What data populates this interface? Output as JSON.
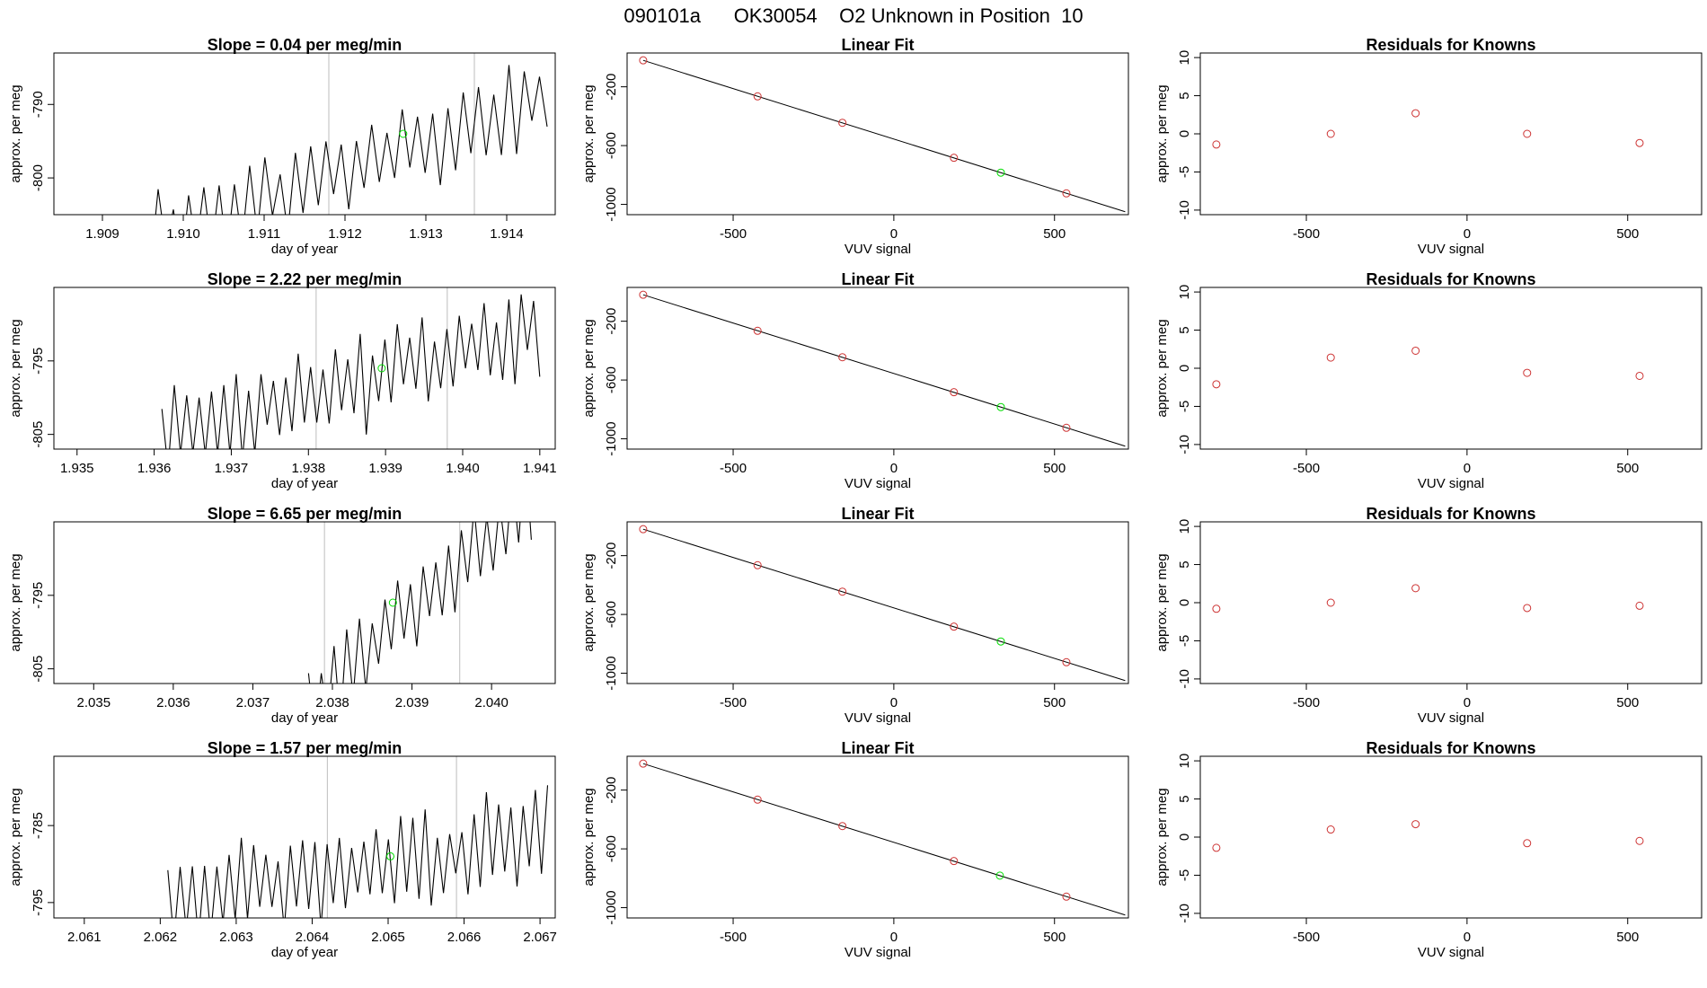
{
  "page_title": "090101a      OK30054    O2 Unknown in Position  10",
  "colors": {
    "axis": "#000000",
    "trace": "#000000",
    "known_marker": "#cd3333",
    "unknown_marker": "#00dd00",
    "vertical_marker": "#bebebe"
  },
  "chart_data": [
    {
      "row": 1,
      "kind": "timeseries",
      "type": "line",
      "title": "Slope =  0.04  per meg/min",
      "xlabel": "day of year",
      "ylabel": "approx. per meg",
      "xlim": [
        1.9084,
        1.9146
      ],
      "ylim": [
        -805,
        -783
      ],
      "xticks": [
        1.909,
        1.91,
        1.911,
        1.912,
        1.913,
        1.914
      ],
      "xtick_labels": [
        "1.909",
        "1.910",
        "1.911",
        "1.912",
        "1.913",
        "1.914"
      ],
      "yticks": [
        -800,
        -790
      ],
      "ytick_labels": [
        "-800",
        "-790"
      ],
      "vlines": [
        1.9118,
        1.9136
      ],
      "unknown_point": [
        1.91272,
        -794
      ],
      "trace": {
        "start": 1.9095,
        "end": 1.9145,
        "base_start": -808,
        "base_end": -789,
        "amplitude": 4.5,
        "period": 0.00019,
        "seed": 11
      }
    },
    {
      "row": 1,
      "kind": "fit",
      "type": "scatter",
      "title": "Linear Fit",
      "xlabel": "VUV signal",
      "ylabel": "approx. per meg",
      "xlim": [
        -830,
        730
      ],
      "ylim": [
        -1070,
        30
      ],
      "xticks": [
        -500,
        0,
        500
      ],
      "xtick_labels": [
        "-500",
        "0",
        "500"
      ],
      "yticks": [
        -1000,
        -600,
        -200
      ],
      "ytick_labels": [
        "-1000",
        "-600",
        "-200"
      ],
      "line": {
        "x0": -780,
        "y0": -20,
        "x1": 720,
        "y1": -1050
      },
      "knowns": [
        {
          "x": -780,
          "y": -20
        },
        {
          "x": -424,
          "y": -265
        },
        {
          "x": -160,
          "y": -445
        },
        {
          "x": 187,
          "y": -683
        },
        {
          "x": 537,
          "y": -925
        }
      ],
      "unknown": {
        "x": 333,
        "y": -784
      }
    },
    {
      "row": 1,
      "kind": "residuals",
      "type": "scatter",
      "title": "Residuals for Knowns",
      "xlabel": "VUV signal",
      "ylabel": "approx. per meg",
      "xlim": [
        -830,
        730
      ],
      "ylim": [
        -10.6,
        10.6
      ],
      "xticks": [
        -500,
        0,
        500
      ],
      "xtick_labels": [
        "-500",
        "0",
        "500"
      ],
      "yticks": [
        -10,
        -5,
        0,
        5,
        10
      ],
      "ytick_labels": [
        "-10",
        "-5",
        "0",
        "5",
        "10"
      ],
      "points": [
        {
          "x": -780,
          "y": -1.4
        },
        {
          "x": -424,
          "y": 0.0
        },
        {
          "x": -160,
          "y": 2.7
        },
        {
          "x": 187,
          "y": 0.0
        },
        {
          "x": 537,
          "y": -1.2
        }
      ]
    },
    {
      "row": 2,
      "kind": "timeseries",
      "type": "line",
      "title": "Slope =  2.22  per meg/min",
      "xlabel": "day of year",
      "ylabel": "approx. per meg",
      "xlim": [
        1.9347,
        1.9412
      ],
      "ylim": [
        -807,
        -785
      ],
      "xticks": [
        1.935,
        1.936,
        1.937,
        1.938,
        1.939,
        1.94,
        1.941
      ],
      "xtick_labels": [
        "1.935",
        "1.936",
        "1.937",
        "1.938",
        "1.939",
        "1.940",
        "1.941"
      ],
      "yticks": [
        -805,
        -795
      ],
      "ytick_labels": [
        "-805",
        "-795"
      ],
      "vlines": [
        1.9381,
        1.9398
      ],
      "unknown_point": [
        1.93895,
        -796
      ],
      "trace": {
        "start": 1.9361,
        "end": 1.941,
        "base_start": -805,
        "base_end": -791,
        "amplitude": 5.0,
        "period": 0.00016,
        "seed": 23
      }
    },
    {
      "row": 2,
      "kind": "fit",
      "type": "scatter",
      "title": "Linear Fit",
      "xlabel": "VUV signal",
      "ylabel": "approx. per meg",
      "xlim": [
        -830,
        730
      ],
      "ylim": [
        -1070,
        30
      ],
      "xticks": [
        -500,
        0,
        500
      ],
      "xtick_labels": [
        "-500",
        "0",
        "500"
      ],
      "yticks": [
        -1000,
        -600,
        -200
      ],
      "ytick_labels": [
        "-1000",
        "-600",
        "-200"
      ],
      "line": {
        "x0": -780,
        "y0": -20,
        "x1": 720,
        "y1": -1050
      },
      "knowns": [
        {
          "x": -780,
          "y": -20
        },
        {
          "x": -424,
          "y": -265
        },
        {
          "x": -160,
          "y": -445
        },
        {
          "x": 187,
          "y": -683
        },
        {
          "x": 537,
          "y": -925
        }
      ],
      "unknown": {
        "x": 333,
        "y": -784
      }
    },
    {
      "row": 2,
      "kind": "residuals",
      "type": "scatter",
      "title": "Residuals for Knowns",
      "xlabel": "VUV signal",
      "ylabel": "approx. per meg",
      "xlim": [
        -830,
        730
      ],
      "ylim": [
        -10.6,
        10.6
      ],
      "xticks": [
        -500,
        0,
        500
      ],
      "xtick_labels": [
        "-500",
        "0",
        "500"
      ],
      "yticks": [
        -10,
        -5,
        0,
        5,
        10
      ],
      "ytick_labels": [
        "-10",
        "-5",
        "0",
        "5",
        "10"
      ],
      "points": [
        {
          "x": -780,
          "y": -2.1
        },
        {
          "x": -424,
          "y": 1.4
        },
        {
          "x": -160,
          "y": 2.3
        },
        {
          "x": 187,
          "y": -0.6
        },
        {
          "x": 537,
          "y": -1.0
        }
      ]
    },
    {
      "row": 3,
      "kind": "timeseries",
      "type": "line",
      "title": "Slope =  6.65  per meg/min",
      "xlabel": "day of year",
      "ylabel": "approx. per meg",
      "xlim": [
        2.0345,
        2.0408
      ],
      "ylim": [
        -807,
        -785
      ],
      "xticks": [
        2.035,
        2.036,
        2.037,
        2.038,
        2.039,
        2.04
      ],
      "xtick_labels": [
        "2.035",
        "2.036",
        "2.037",
        "2.038",
        "2.039",
        "2.040"
      ],
      "yticks": [
        -805,
        -795
      ],
      "ytick_labels": [
        "-805",
        "-795"
      ],
      "vlines": [
        2.0379,
        2.0396
      ],
      "unknown_point": [
        2.03876,
        -796
      ],
      "trace": {
        "start": 2.0377,
        "end": 2.0405,
        "base_start": -810,
        "base_end": -782,
        "amplitude": 5.5,
        "period": 0.00016,
        "seed": 37
      }
    },
    {
      "row": 3,
      "kind": "fit",
      "type": "scatter",
      "title": "Linear Fit",
      "xlabel": "VUV signal",
      "ylabel": "approx. per meg",
      "xlim": [
        -830,
        730
      ],
      "ylim": [
        -1070,
        30
      ],
      "xticks": [
        -500,
        0,
        500
      ],
      "xtick_labels": [
        "-500",
        "0",
        "500"
      ],
      "yticks": [
        -1000,
        -600,
        -200
      ],
      "ytick_labels": [
        "-1000",
        "-600",
        "-200"
      ],
      "line": {
        "x0": -780,
        "y0": -20,
        "x1": 720,
        "y1": -1050
      },
      "knowns": [
        {
          "x": -780,
          "y": -20
        },
        {
          "x": -424,
          "y": -265
        },
        {
          "x": -160,
          "y": -445
        },
        {
          "x": 187,
          "y": -683
        },
        {
          "x": 537,
          "y": -925
        }
      ],
      "unknown": {
        "x": 333,
        "y": -784
      }
    },
    {
      "row": 3,
      "kind": "residuals",
      "type": "scatter",
      "title": "Residuals for Knowns",
      "xlabel": "VUV signal",
      "ylabel": "approx. per meg",
      "xlim": [
        -830,
        730
      ],
      "ylim": [
        -10.6,
        10.6
      ],
      "xticks": [
        -500,
        0,
        500
      ],
      "xtick_labels": [
        "-500",
        "0",
        "500"
      ],
      "yticks": [
        -10,
        -5,
        0,
        5,
        10
      ],
      "ytick_labels": [
        "-10",
        "-5",
        "0",
        "5",
        "10"
      ],
      "points": [
        {
          "x": -780,
          "y": -0.8
        },
        {
          "x": -424,
          "y": 0.0
        },
        {
          "x": -160,
          "y": 1.9
        },
        {
          "x": 187,
          "y": -0.7
        },
        {
          "x": 537,
          "y": -0.4
        }
      ]
    },
    {
      "row": 4,
      "kind": "timeseries",
      "type": "line",
      "title": "Slope =  1.57  per meg/min",
      "xlabel": "day of year",
      "ylabel": "approx. per meg",
      "xlim": [
        2.0606,
        2.0672
      ],
      "ylim": [
        -797,
        -776
      ],
      "xticks": [
        2.061,
        2.062,
        2.063,
        2.064,
        2.065,
        2.066,
        2.067
      ],
      "xtick_labels": [
        "2.061",
        "2.062",
        "2.063",
        "2.064",
        "2.065",
        "2.066",
        "2.067"
      ],
      "yticks": [
        -795,
        -785
      ],
      "ytick_labels": [
        "-795",
        "-785"
      ],
      "vlines": [
        2.0642,
        2.0659
      ],
      "unknown_point": [
        2.06503,
        -789
      ],
      "trace": {
        "start": 2.0621,
        "end": 2.0671,
        "base_start": -795,
        "base_end": -786,
        "amplitude": 4.5,
        "period": 0.00016,
        "seed": 51
      }
    },
    {
      "row": 4,
      "kind": "fit",
      "type": "scatter",
      "title": "Linear Fit",
      "xlabel": "VUV signal",
      "ylabel": "approx. per meg",
      "xlim": [
        -830,
        730
      ],
      "ylim": [
        -1070,
        30
      ],
      "xticks": [
        -500,
        0,
        500
      ],
      "xtick_labels": [
        "-500",
        "0",
        "500"
      ],
      "yticks": [
        -1000,
        -600,
        -200
      ],
      "ytick_labels": [
        "-1000",
        "-600",
        "-200"
      ],
      "line": {
        "x0": -780,
        "y0": -20,
        "x1": 720,
        "y1": -1050
      },
      "knowns": [
        {
          "x": -780,
          "y": -20
        },
        {
          "x": -424,
          "y": -265
        },
        {
          "x": -160,
          "y": -445
        },
        {
          "x": 187,
          "y": -683
        },
        {
          "x": 537,
          "y": -925
        }
      ],
      "unknown": {
        "x": 330,
        "y": -782
      }
    },
    {
      "row": 4,
      "kind": "residuals",
      "type": "scatter",
      "title": "Residuals for Knowns",
      "xlabel": "VUV signal",
      "ylabel": "approx. per meg",
      "xlim": [
        -830,
        730
      ],
      "ylim": [
        -10.6,
        10.6
      ],
      "xticks": [
        -500,
        0,
        500
      ],
      "xtick_labels": [
        "-500",
        "0",
        "500"
      ],
      "yticks": [
        -10,
        -5,
        0,
        5,
        10
      ],
      "ytick_labels": [
        "-10",
        "-5",
        "0",
        "5",
        "10"
      ],
      "points": [
        {
          "x": -780,
          "y": -1.4
        },
        {
          "x": -424,
          "y": 1.0
        },
        {
          "x": -160,
          "y": 1.7
        },
        {
          "x": 187,
          "y": -0.8
        },
        {
          "x": 537,
          "y": -0.5
        }
      ]
    }
  ]
}
